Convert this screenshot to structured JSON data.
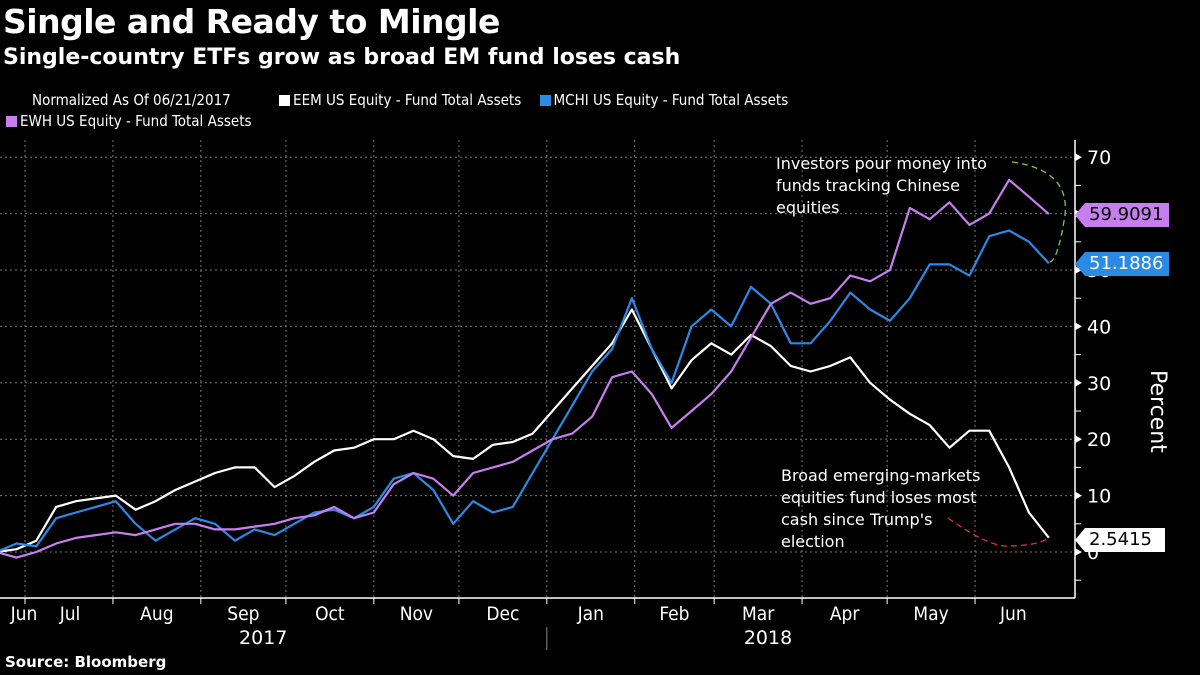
{
  "header": {
    "title": "Single and Ready to Mingle",
    "subtitle": "Single-country ETFs grow as broad EM fund loses cash"
  },
  "legend": {
    "normalized": "Normalized As Of 06/21/2017",
    "items": [
      {
        "label": "EEM US Equity - Fund Total Assets",
        "color": "#ffffff"
      },
      {
        "label": "MCHI US Equity - Fund Total Assets",
        "color": "#2b8ae6"
      },
      {
        "label": "EWH US Equity - Fund Total Assets",
        "color": "#c77fef"
      }
    ]
  },
  "annotations": {
    "top": "Investors pour money into funds tracking Chinese equities",
    "top_lines": [
      "Investors pour money into",
      "funds tracking Chinese",
      "equities"
    ],
    "bottom_lines": [
      "Broad emerging-markets",
      "equities fund loses most",
      "cash since Trump's",
      "election"
    ]
  },
  "source": "Source: Bloomberg",
  "chart_data": {
    "type": "line",
    "title": "Single and Ready to Mingle",
    "subtitle": "Single-country ETFs grow as broad EM fund loses cash",
    "xlabel": "",
    "ylabel": "Percent",
    "ylim": [
      -8,
      73
    ],
    "yticks": [
      0,
      10,
      20,
      30,
      40,
      50,
      60,
      70
    ],
    "xlim": [
      "2017-06-21",
      "2018-06-28"
    ],
    "month_ticks": [
      {
        "label": "Jun",
        "date": "2017-06-21"
      },
      {
        "label": "Jul",
        "date": "2017-07-01"
      },
      {
        "label": "Aug",
        "date": "2017-08-01"
      },
      {
        "label": "Sep",
        "date": "2017-09-01"
      },
      {
        "label": "Oct",
        "date": "2017-10-01"
      },
      {
        "label": "Nov",
        "date": "2017-11-01"
      },
      {
        "label": "Dec",
        "date": "2017-12-01"
      },
      {
        "label": "Jan",
        "date": "2018-01-01"
      },
      {
        "label": "Feb",
        "date": "2018-02-01"
      },
      {
        "label": "Mar",
        "date": "2018-03-01"
      },
      {
        "label": "Apr",
        "date": "2018-04-01"
      },
      {
        "label": "May",
        "date": "2018-05-01"
      },
      {
        "label": "Jun",
        "date": "2018-06-01"
      }
    ],
    "year_labels": [
      {
        "label": "2017",
        "date": "2017-09-23"
      },
      {
        "label": "2018",
        "date": "2018-03-20"
      }
    ],
    "year_divider": "2018-01-01",
    "grid": true,
    "legend_position": "top-left",
    "x": [
      "2017-06-21",
      "2017-06-28",
      "2017-07-05",
      "2017-07-12",
      "2017-07-19",
      "2017-07-26",
      "2017-08-02",
      "2017-08-09",
      "2017-08-16",
      "2017-08-23",
      "2017-08-30",
      "2017-09-06",
      "2017-09-13",
      "2017-09-20",
      "2017-09-27",
      "2017-10-04",
      "2017-10-11",
      "2017-10-18",
      "2017-10-25",
      "2017-11-01",
      "2017-11-08",
      "2017-11-15",
      "2017-11-22",
      "2017-11-29",
      "2017-12-06",
      "2017-12-13",
      "2017-12-20",
      "2017-12-27",
      "2018-01-03",
      "2018-01-10",
      "2018-01-17",
      "2018-01-24",
      "2018-01-31",
      "2018-02-07",
      "2018-02-14",
      "2018-02-21",
      "2018-02-28",
      "2018-03-07",
      "2018-03-14",
      "2018-03-21",
      "2018-03-28",
      "2018-04-04",
      "2018-04-11",
      "2018-04-18",
      "2018-04-25",
      "2018-05-02",
      "2018-05-09",
      "2018-05-16",
      "2018-05-23",
      "2018-05-30",
      "2018-06-06",
      "2018-06-13",
      "2018-06-20",
      "2018-06-27"
    ],
    "series": [
      {
        "name": "EEM US Equity - Fund Total Assets",
        "color": "#ffffff",
        "values": [
          0,
          0.5,
          2,
          8,
          9,
          9.5,
          10,
          7.5,
          9,
          11,
          12.5,
          14,
          15,
          15,
          11.5,
          13.5,
          16,
          18,
          18.5,
          20,
          20,
          21.5,
          20,
          17,
          16.5,
          19,
          19.5,
          21,
          25,
          29,
          33,
          37,
          43,
          36,
          29,
          34,
          37,
          35,
          38.5,
          36.5,
          33,
          32,
          33,
          34.5,
          30,
          27,
          24.5,
          22.5,
          18.5,
          21.5,
          21.5,
          15,
          7,
          2.5415
        ]
      },
      {
        "name": "MCHI US Equity - Fund Total Assets",
        "color": "#2b8ae6",
        "values": [
          0,
          1.5,
          1,
          6,
          7,
          8,
          9,
          5,
          2,
          4,
          6,
          5,
          2,
          4,
          3,
          5,
          7,
          7.5,
          6,
          8,
          13,
          14,
          11,
          5,
          9,
          7,
          8,
          14,
          20,
          26,
          32,
          36,
          45,
          36,
          30,
          40,
          43,
          40,
          47,
          44,
          37,
          37,
          41,
          46,
          43,
          41,
          45,
          51,
          51,
          49,
          56,
          57,
          55,
          51.1886
        ]
      },
      {
        "name": "EWH US Equity - Fund Total Assets",
        "color": "#c77fef",
        "values": [
          0,
          -1,
          0,
          1.5,
          2.5,
          3,
          3.5,
          3,
          4,
          5,
          5,
          4,
          4,
          4.5,
          5,
          6,
          6.5,
          8,
          6,
          7,
          12,
          14,
          13,
          10,
          14,
          15,
          16,
          18,
          20,
          21,
          24,
          31,
          32,
          28,
          22,
          25,
          28,
          32,
          38,
          44,
          46,
          44,
          45,
          49,
          48,
          50,
          61,
          59,
          62,
          58,
          60,
          66,
          63,
          59.9091
        ]
      }
    ],
    "last_value_labels": [
      {
        "series": "EWH US Equity - Fund Total Assets",
        "value": "59.9091",
        "bg": "#c77fef",
        "fg": "#000000"
      },
      {
        "series": "MCHI US Equity - Fund Total Assets",
        "value": "51.1886",
        "bg": "#2b8ae6",
        "fg": "#ffffff"
      },
      {
        "series": "EEM US Equity - Fund Total Assets",
        "value": "2.5415",
        "bg": "#ffffff",
        "fg": "#000000"
      }
    ],
    "highlight_arcs": [
      {
        "color": "#8dc63f",
        "around": "MCHI/EWH recent rise"
      },
      {
        "color": "#e0314b",
        "around": "EEM recent drop"
      }
    ]
  }
}
